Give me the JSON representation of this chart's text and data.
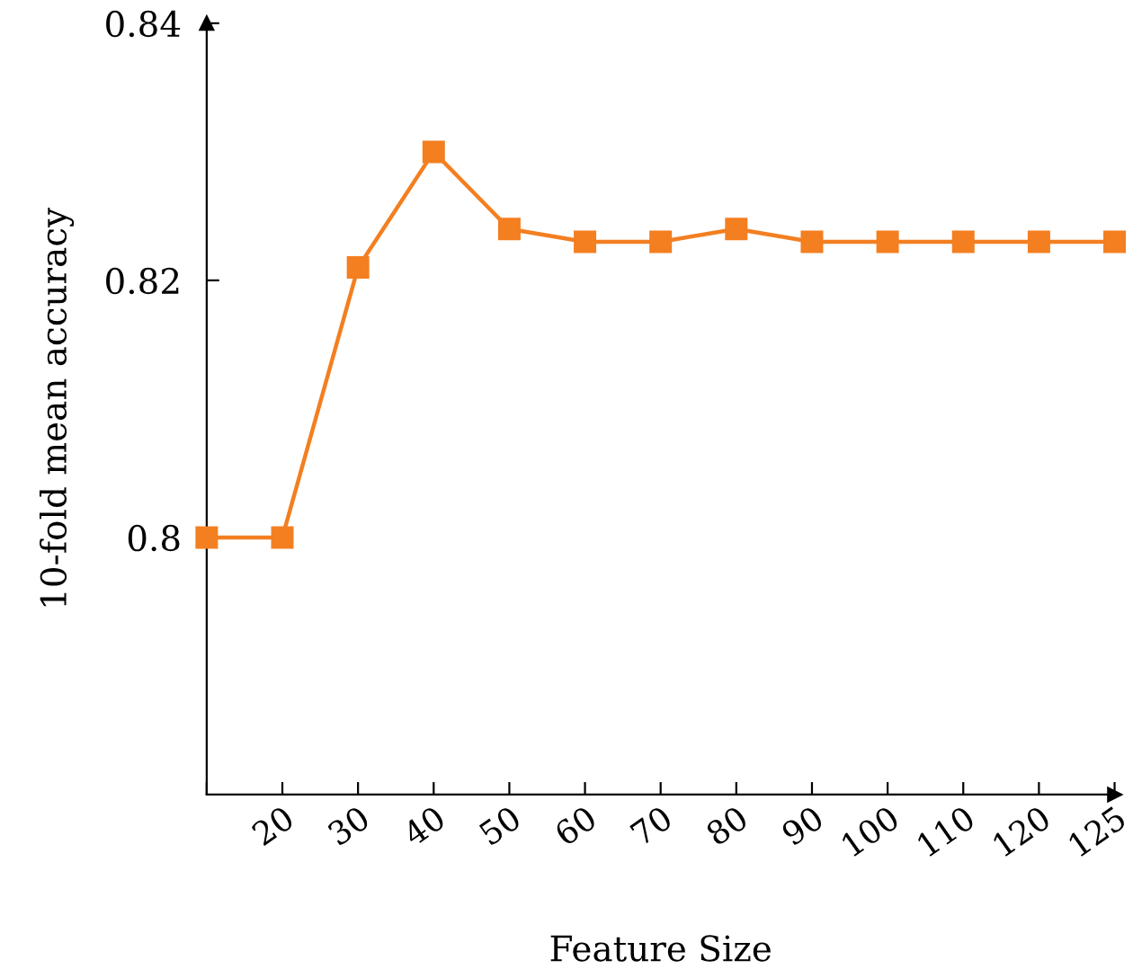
{
  "chart_data": {
    "type": "line",
    "xlabel": "Feature Size",
    "ylabel": "10-fold mean accuracy",
    "categories": [
      null,
      "20",
      "30",
      "40",
      "50",
      "60",
      "70",
      "80",
      "90",
      "100",
      "110",
      "120",
      "125"
    ],
    "series": [
      {
        "color": "#f37f21",
        "values": [
          0.8,
          0.8,
          0.821,
          0.83,
          0.824,
          0.823,
          0.823,
          0.824,
          0.823,
          0.823,
          0.823,
          0.823,
          0.823
        ]
      }
    ],
    "ylim": [
      0.78,
      0.84
    ],
    "yticks": [
      {
        "value": 0.8,
        "label": "0.8"
      },
      0.82,
      0.84
    ],
    "marker": "square",
    "line_style": "solid",
    "grid": false
  }
}
